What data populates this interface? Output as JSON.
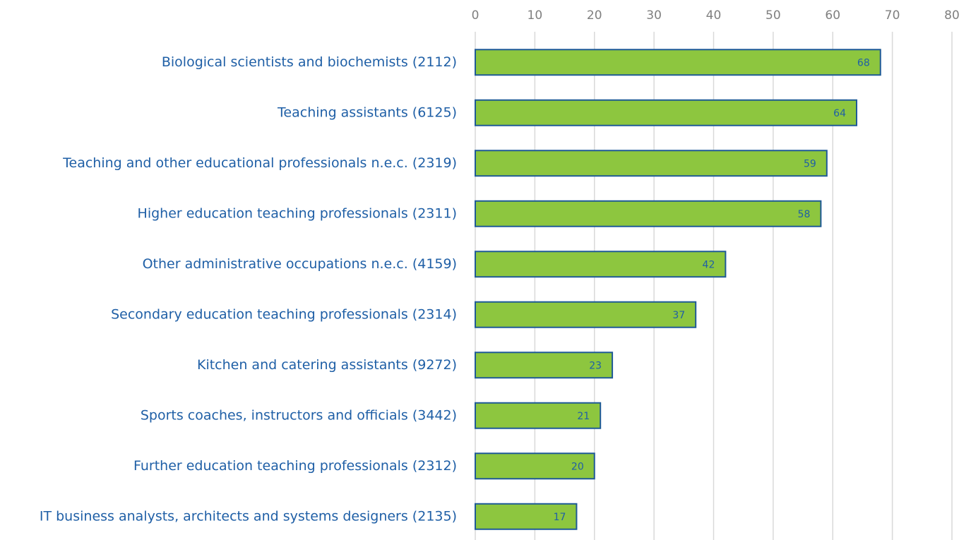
{
  "chart_data": {
    "type": "bar",
    "orientation": "horizontal",
    "categories": [
      "Biological scientists and biochemists (2112)",
      "Teaching assistants (6125)",
      "Teaching and other educational professionals n.e.c. (2319)",
      "Higher education teaching professionals (2311)",
      "Other administrative occupations n.e.c. (4159)",
      "Secondary education teaching professionals (2314)",
      "Kitchen and catering assistants (9272)",
      "Sports coaches, instructors and officials (3442)",
      "Further education teaching professionals (2312)",
      "IT business analysts, architects and systems designers (2135)"
    ],
    "values": [
      68,
      64,
      59,
      58,
      42,
      37,
      23,
      21,
      20,
      17
    ],
    "color": "#8dc63f",
    "edgecolor": "#1f5a96",
    "xlim": [
      0,
      80
    ],
    "xticks": [
      0,
      10,
      20,
      30,
      40,
      50,
      60,
      70,
      80
    ],
    "grid": true,
    "xaxis_position": "top"
  }
}
